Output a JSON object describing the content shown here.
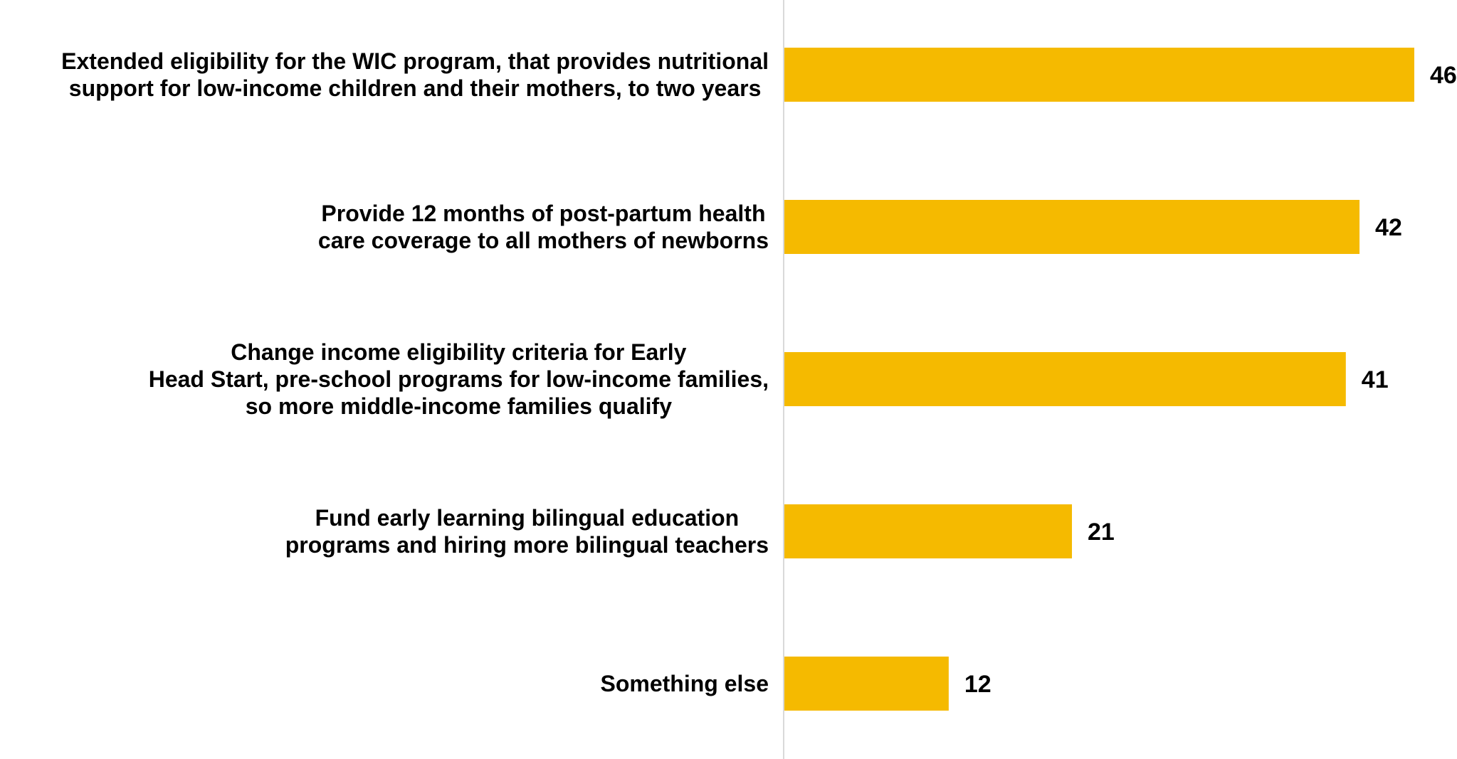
{
  "chart_data": {
    "type": "bar",
    "orientation": "horizontal",
    "categories": [
      [
        "Extended eligibility for the WIC program, that provides nutritional",
        "support for low-income children and their mothers, to two years"
      ],
      [
        "Provide 12 months of post-partum health",
        "care coverage to all mothers of newborns"
      ],
      [
        "Change income eligibility criteria for Early",
        "Head Start, pre-school programs for low-income families,",
        "so more middle-income families qualify"
      ],
      [
        "Fund early learning bilingual education",
        "programs and hiring more bilingual teachers"
      ],
      [
        "Something else"
      ]
    ],
    "values": [
      46,
      42,
      41,
      21,
      12
    ],
    "data_labels": [
      "46",
      "42",
      "41",
      "21",
      "12"
    ],
    "bar_color": "#F5BA00",
    "axis_color": "#D9D9D9",
    "xlim": [
      0,
      46
    ],
    "grid": false,
    "legend": "none"
  }
}
